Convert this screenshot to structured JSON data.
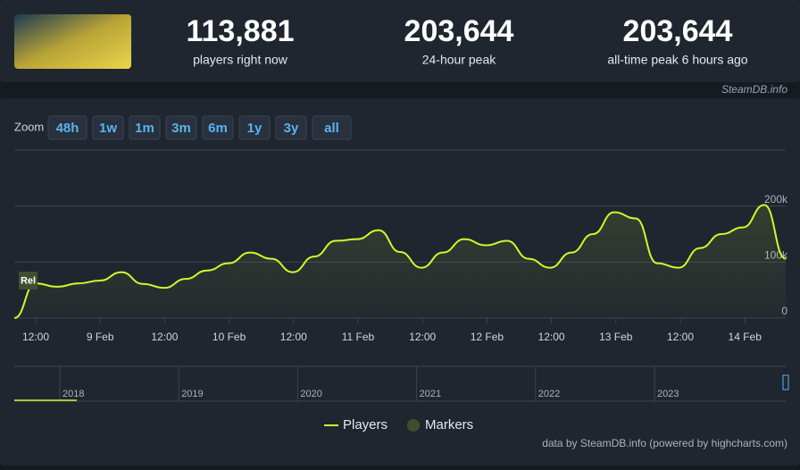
{
  "stats": [
    {
      "value": "113,881",
      "label": "players right now"
    },
    {
      "value": "203,644",
      "label": "24-hour peak"
    },
    {
      "value": "203,644",
      "label": "all-time peak 6 hours ago"
    }
  ],
  "brand": "SteamDB.info",
  "zoom": {
    "label": "Zoom",
    "options": [
      "48h",
      "1w",
      "1m",
      "3m",
      "6m",
      "1y",
      "3y",
      "all"
    ]
  },
  "chart_data": {
    "type": "line",
    "xticks": [
      "12:00",
      "9 Feb",
      "12:00",
      "10 Feb",
      "12:00",
      "11 Feb",
      "12:00",
      "12 Feb",
      "12:00",
      "13 Feb",
      "12:00",
      "14 Feb"
    ],
    "ylim": [
      0,
      300000
    ],
    "yticks": [
      {
        "value": 0,
        "label": "0"
      },
      {
        "value": 100000,
        "label": "100k"
      },
      {
        "value": 200000,
        "label": "200k"
      }
    ],
    "grid": true,
    "marker_label": "Rel",
    "series": [
      {
        "name": "Players",
        "color": "#d4f52a",
        "values": [
          0,
          62000,
          56000,
          62000,
          67000,
          82000,
          61000,
          54000,
          70000,
          85000,
          98000,
          117000,
          106000,
          82000,
          110000,
          138000,
          141000,
          157000,
          118000,
          90000,
          117000,
          141000,
          130000,
          138000,
          106000,
          90000,
          117000,
          150000,
          189000,
          178000,
          98000,
          90000,
          125000,
          150000,
          162000,
          202000,
          106000
        ]
      },
      {
        "name": "Markers",
        "color": "#3f4f2e"
      }
    ],
    "navigator": [
      "2018",
      "2019",
      "2020",
      "2021",
      "2022",
      "2023"
    ]
  },
  "credit": "data by SteamDB.info (powered by highcharts.com)"
}
